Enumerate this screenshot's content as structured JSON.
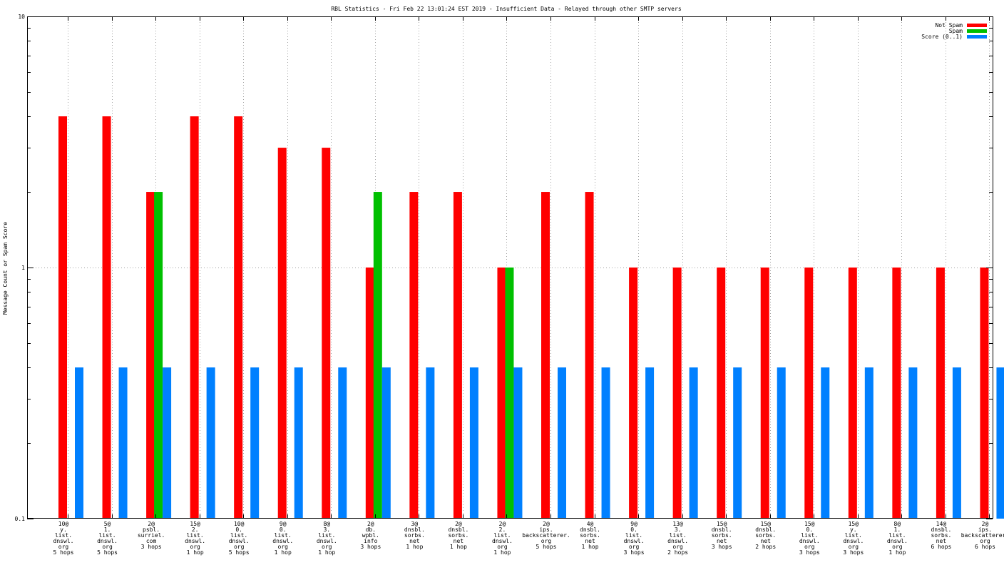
{
  "chart_data": {
    "type": "bar",
    "title": "RBL Statistics - Fri Feb 22 13:01:24 EST 2019 - Insufficient Data - Relayed through other SMTP servers",
    "ylabel": "Message Count or Spam Score",
    "xlabel": "",
    "yscale": "log",
    "ylim": [
      0.1,
      10
    ],
    "ytick_labels": [
      "10",
      "1",
      "0.1"
    ],
    "grid": true,
    "legend_position": "top-right",
    "categories": [
      [
        "10@",
        "y.",
        "list.",
        "dnswl.",
        "org",
        "5 hops"
      ],
      [
        "5@",
        "1.",
        "list.",
        "dnswl.",
        "org",
        "5 hops"
      ],
      [
        "2@",
        "psbl.",
        "surriel.",
        "com",
        "3 hops"
      ],
      [
        "15@",
        "2.",
        "list.",
        "dnswl.",
        "org",
        "1 hop"
      ],
      [
        "10@",
        "0.",
        "list.",
        "dnswl.",
        "org",
        "5 hops"
      ],
      [
        "9@",
        "0.",
        "list.",
        "dnswl.",
        "org",
        "1 hop"
      ],
      [
        "8@",
        "3.",
        "list.",
        "dnswl.",
        "org",
        "1 hop"
      ],
      [
        "2@",
        "db.",
        "wpbl.",
        "info",
        "3 hops"
      ],
      [
        "3@",
        "dnsbl.",
        "sorbs.",
        "net",
        "1 hop"
      ],
      [
        "2@",
        "dnsbl.",
        "sorbs.",
        "net",
        "1 hop"
      ],
      [
        "2@",
        "2.",
        "list.",
        "dnswl.",
        "org",
        "1 hop"
      ],
      [
        "2@",
        "ips.",
        "backscatterer.",
        "org",
        "5 hops"
      ],
      [
        "4@",
        "dnsbl.",
        "sorbs.",
        "net",
        "1 hop"
      ],
      [
        "9@",
        "0.",
        "list.",
        "dnswl.",
        "org",
        "3 hops"
      ],
      [
        "13@",
        "3.",
        "list.",
        "dnswl.",
        "org",
        "2 hops"
      ],
      [
        "15@",
        "dnsbl.",
        "sorbs.",
        "net",
        "3 hops"
      ],
      [
        "15@",
        "dnsbl.",
        "sorbs.",
        "net",
        "2 hops"
      ],
      [
        "15@",
        "0.",
        "list.",
        "dnswl.",
        "org",
        "3 hops"
      ],
      [
        "15@",
        "y.",
        "list.",
        "dnswl.",
        "org",
        "3 hops"
      ],
      [
        "8@",
        "1.",
        "list.",
        "dnswl.",
        "org",
        "1 hop"
      ],
      [
        "14@",
        "dnsbl.",
        "sorbs.",
        "net",
        "6 hops"
      ],
      [
        "2@",
        "ips.",
        "backscatterer.",
        "org",
        "6 hops"
      ]
    ],
    "series": [
      {
        "name": "Not Spam",
        "color": "#ff0000",
        "values": [
          4,
          4,
          2,
          4,
          4,
          3,
          3,
          1,
          2,
          2,
          1,
          2,
          2,
          1,
          1,
          1,
          1,
          1,
          1,
          1,
          1,
          1
        ]
      },
      {
        "name": "Spam",
        "color": "#00c000",
        "values": [
          null,
          null,
          2,
          null,
          null,
          null,
          null,
          2,
          null,
          null,
          1,
          null,
          null,
          null,
          null,
          null,
          null,
          null,
          null,
          null,
          null,
          null
        ]
      },
      {
        "name": "Score (0..1)",
        "color": "#0080ff",
        "values": [
          0.4,
          0.4,
          0.4,
          0.4,
          0.4,
          0.4,
          0.4,
          0.4,
          0.4,
          0.4,
          0.4,
          0.4,
          0.4,
          0.4,
          0.4,
          0.4,
          0.4,
          0.4,
          0.4,
          0.4,
          0.4,
          0.4
        ]
      }
    ]
  }
}
